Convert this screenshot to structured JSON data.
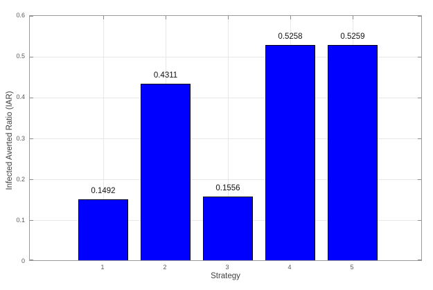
{
  "chart_data": {
    "type": "bar",
    "title": "",
    "xlabel": "Strategy",
    "ylabel": "Infected Averted Ratio (IAR)",
    "categories": [
      "1",
      "2",
      "3",
      "4",
      "5"
    ],
    "values": [
      0.1492,
      0.4311,
      0.1556,
      0.5258,
      0.5259
    ],
    "bar_labels": [
      "0.1492",
      "0.4311",
      "0.1556",
      "0.5258",
      "0.5259"
    ],
    "ylim": [
      0,
      0.6
    ],
    "yticks": [
      0,
      0.1,
      0.2,
      0.3,
      0.4,
      0.5,
      0.6
    ],
    "ytick_labels": [
      "0",
      "0.1",
      "0.2",
      "0.3",
      "0.4",
      "0.5",
      "0.6"
    ],
    "grid": true,
    "grid_axes": "both",
    "legend": null,
    "colors": {
      "bar_fill": "#0000ff",
      "bar_edge": "#000010",
      "grid": "#e7e7e7",
      "axis_box": "#9b9b9b",
      "tick_mark": "#8a8a8a",
      "tick_label": "#575757",
      "axis_label": "#3f3f3f",
      "value_label": "#111111"
    }
  }
}
